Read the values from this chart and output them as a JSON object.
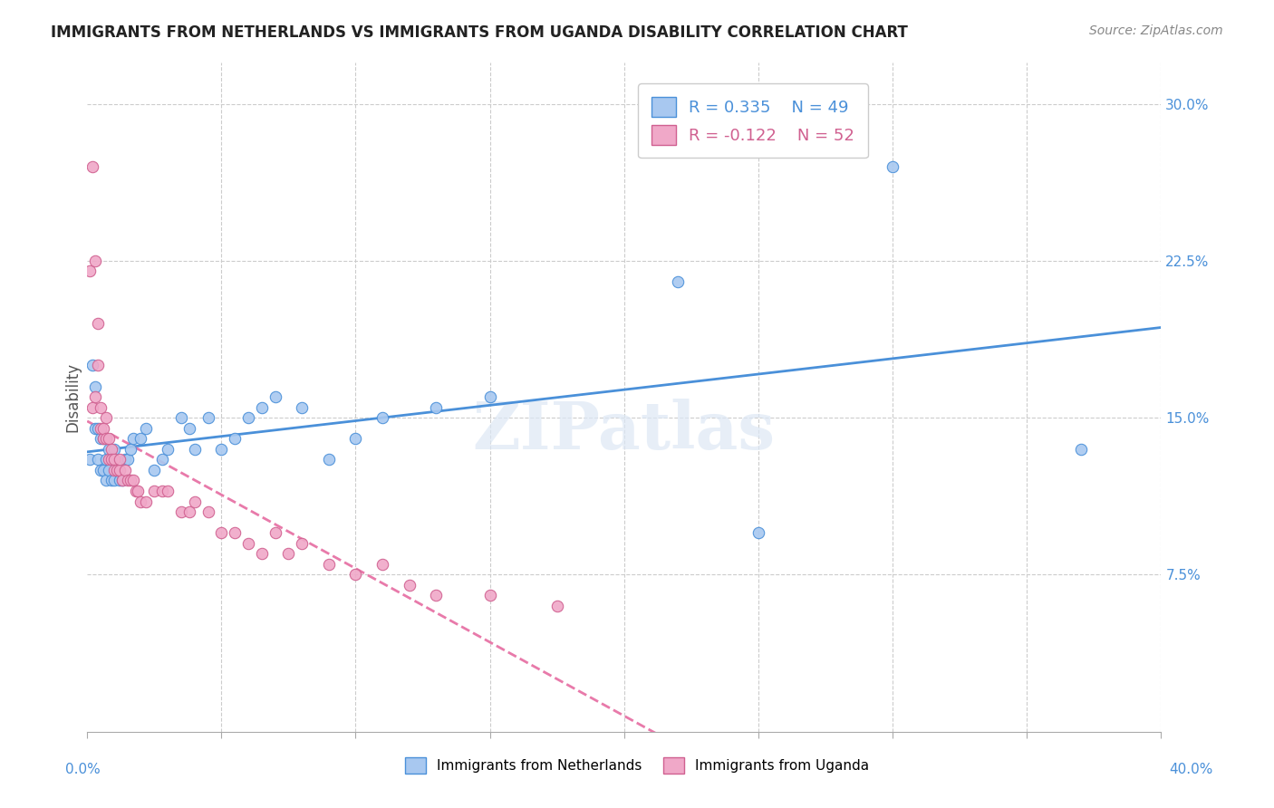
{
  "title": "IMMIGRANTS FROM NETHERLANDS VS IMMIGRANTS FROM UGANDA DISABILITY CORRELATION CHART",
  "source": "Source: ZipAtlas.com",
  "ylabel": "Disability",
  "x_ticks": [
    0.0,
    0.05,
    0.1,
    0.15,
    0.2,
    0.25,
    0.3,
    0.35,
    0.4
  ],
  "y_ticks_right": [
    0.075,
    0.15,
    0.225,
    0.3
  ],
  "y_tick_labels_right": [
    "7.5%",
    "15.0%",
    "22.5%",
    "30.0%"
  ],
  "netherlands_R": 0.335,
  "netherlands_N": 49,
  "uganda_R": -0.122,
  "uganda_N": 52,
  "netherlands_color": "#a8c8f0",
  "uganda_color": "#f0a8c8",
  "netherlands_line_color": "#4a90d9",
  "uganda_line_color": "#e87aaa",
  "uganda_edge_color": "#d06090",
  "background_color": "#ffffff",
  "watermark": "ZIPatlas",
  "netherlands_x": [
    0.001,
    0.002,
    0.003,
    0.003,
    0.004,
    0.004,
    0.005,
    0.005,
    0.006,
    0.006,
    0.007,
    0.007,
    0.008,
    0.008,
    0.009,
    0.009,
    0.01,
    0.01,
    0.011,
    0.012,
    0.013,
    0.014,
    0.015,
    0.016,
    0.017,
    0.02,
    0.022,
    0.025,
    0.028,
    0.03,
    0.035,
    0.038,
    0.04,
    0.045,
    0.05,
    0.055,
    0.06,
    0.065,
    0.07,
    0.08,
    0.09,
    0.1,
    0.11,
    0.13,
    0.15,
    0.22,
    0.25,
    0.3,
    0.37
  ],
  "netherlands_y": [
    0.13,
    0.175,
    0.145,
    0.165,
    0.13,
    0.145,
    0.125,
    0.14,
    0.125,
    0.14,
    0.12,
    0.13,
    0.125,
    0.135,
    0.12,
    0.13,
    0.12,
    0.135,
    0.125,
    0.12,
    0.12,
    0.13,
    0.13,
    0.135,
    0.14,
    0.14,
    0.145,
    0.125,
    0.13,
    0.135,
    0.15,
    0.145,
    0.135,
    0.15,
    0.135,
    0.14,
    0.15,
    0.155,
    0.16,
    0.155,
    0.13,
    0.14,
    0.15,
    0.155,
    0.16,
    0.215,
    0.095,
    0.27,
    0.135
  ],
  "uganda_x": [
    0.001,
    0.002,
    0.002,
    0.003,
    0.003,
    0.004,
    0.004,
    0.005,
    0.005,
    0.006,
    0.006,
    0.007,
    0.007,
    0.008,
    0.008,
    0.009,
    0.009,
    0.01,
    0.01,
    0.011,
    0.012,
    0.012,
    0.013,
    0.014,
    0.015,
    0.016,
    0.017,
    0.018,
    0.019,
    0.02,
    0.022,
    0.025,
    0.028,
    0.03,
    0.035,
    0.038,
    0.04,
    0.045,
    0.05,
    0.055,
    0.06,
    0.065,
    0.07,
    0.075,
    0.08,
    0.09,
    0.1,
    0.11,
    0.12,
    0.13,
    0.15,
    0.175
  ],
  "uganda_y": [
    0.22,
    0.27,
    0.155,
    0.225,
    0.16,
    0.195,
    0.175,
    0.155,
    0.145,
    0.14,
    0.145,
    0.15,
    0.14,
    0.14,
    0.13,
    0.135,
    0.13,
    0.13,
    0.125,
    0.125,
    0.125,
    0.13,
    0.12,
    0.125,
    0.12,
    0.12,
    0.12,
    0.115,
    0.115,
    0.11,
    0.11,
    0.115,
    0.115,
    0.115,
    0.105,
    0.105,
    0.11,
    0.105,
    0.095,
    0.095,
    0.09,
    0.085,
    0.095,
    0.085,
    0.09,
    0.08,
    0.075,
    0.08,
    0.07,
    0.065,
    0.065,
    0.06
  ]
}
